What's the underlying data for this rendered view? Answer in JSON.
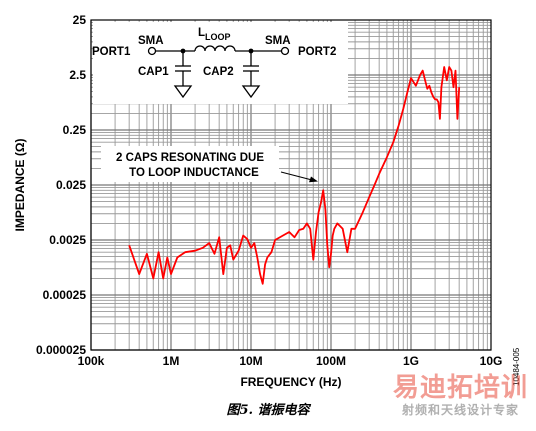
{
  "chart_data": {
    "type": "line",
    "title": "",
    "xlabel": "FREQUENCY (Hz)",
    "ylabel": "IMPEDANCE (Ω)",
    "xscale": "log",
    "yscale": "log",
    "xlim": [
      100000,
      10000000000
    ],
    "ylim": [
      0.00025,
      25
    ],
    "grid": true,
    "x_ticks": [
      {
        "value": 100000,
        "label": "100k"
      },
      {
        "value": 1000000,
        "label": "1M"
      },
      {
        "value": 10000000,
        "label": "10M"
      },
      {
        "value": 100000000,
        "label": "100M"
      },
      {
        "value": 1000000000,
        "label": "1G"
      },
      {
        "value": 10000000000,
        "label": "10G"
      }
    ],
    "y_ticks": [
      {
        "value": 2.5e-05,
        "label": "0.000025"
      },
      {
        "value": 0.00025,
        "label": "0.00025"
      },
      {
        "value": 0.0025,
        "label": "0.0025"
      },
      {
        "value": 0.025,
        "label": "0.025"
      },
      {
        "value": 0.25,
        "label": "0.25"
      },
      {
        "value": 2.5,
        "label": "2.5"
      },
      {
        "value": 25,
        "label": "25"
      }
    ],
    "series": [
      {
        "color": "#ff0000",
        "x": [
          300000,
          400000,
          500000,
          600000,
          700000,
          800000,
          900000,
          1000000,
          1200000,
          1500000,
          2000000,
          2500000,
          3000000,
          3500000,
          4000000,
          4500000,
          5000000,
          5500000,
          6000000,
          7000000,
          8000000,
          9000000,
          10000000,
          11000000,
          12000000,
          13000000,
          14000000,
          15000000,
          16000000,
          18000000,
          20000000,
          25000000,
          30000000,
          35000000,
          40000000,
          45000000,
          50000000,
          55000000,
          60000000,
          65000000,
          70000000,
          75000000,
          80000000,
          85000000,
          90000000,
          95000000,
          100000000,
          105000000,
          110000000,
          120000000,
          140000000,
          160000000,
          180000000,
          200000000,
          250000000,
          300000000,
          350000000,
          400000000,
          500000000,
          600000000,
          700000000,
          800000000,
          900000000,
          1000000000,
          1150000000,
          1300000000,
          1400000000,
          1500000000,
          1600000000,
          1700000000,
          1800000000,
          1900000000,
          2000000000,
          2100000000,
          2200000000,
          2300000000,
          2400000000,
          2600000000,
          2800000000,
          3000000000,
          3200000000,
          3400000000,
          3600000000,
          3800000000,
          4000000000
        ],
        "y": [
          0.002,
          0.0006,
          0.0014,
          0.0005,
          0.0015,
          0.0005,
          0.0012,
          0.0006,
          0.0012,
          0.0015,
          0.0016,
          0.0018,
          0.0022,
          0.0014,
          0.0028,
          0.0006,
          0.0018,
          0.002,
          0.0011,
          0.0016,
          0.003,
          0.0026,
          0.0018,
          0.0022,
          0.0012,
          0.0006,
          0.0004,
          0.0009,
          0.0012,
          0.0015,
          0.0025,
          0.003,
          0.0035,
          0.0028,
          0.0038,
          0.004,
          0.005,
          0.004,
          0.0011,
          0.0035,
          0.008,
          0.012,
          0.02,
          0.009,
          0.002,
          0.0008,
          0.0014,
          0.003,
          0.004,
          0.005,
          0.004,
          0.0015,
          0.004,
          0.004,
          0.008,
          0.015,
          0.025,
          0.04,
          0.08,
          0.15,
          0.3,
          0.6,
          1.2,
          2.2,
          1.6,
          2.5,
          3.0,
          2.0,
          1.4,
          1.6,
          1.2,
          1.0,
          0.9,
          0.9,
          0.8,
          0.4,
          1.5,
          3.5,
          2.0,
          3.5,
          3.0,
          1.5,
          3.0,
          0.4,
          1.5
        ]
      }
    ]
  },
  "annotation": {
    "line1": "2 CAPS RESONATING DUE",
    "line2": "TO LOOP INDUCTANCE"
  },
  "schematic": {
    "sma_left": "SMA",
    "sma_right": "SMA",
    "port1": "PORT1",
    "port2": "PORT2",
    "l_main": "L",
    "l_sub": "LOOP",
    "cap1": "CAP1",
    "cap2": "CAP2"
  },
  "figure_id": "10484-005",
  "caption": "图5. 谐振电容",
  "watermark": {
    "main": "易迪拓培训",
    "sub": "射频和天线设计专家"
  }
}
